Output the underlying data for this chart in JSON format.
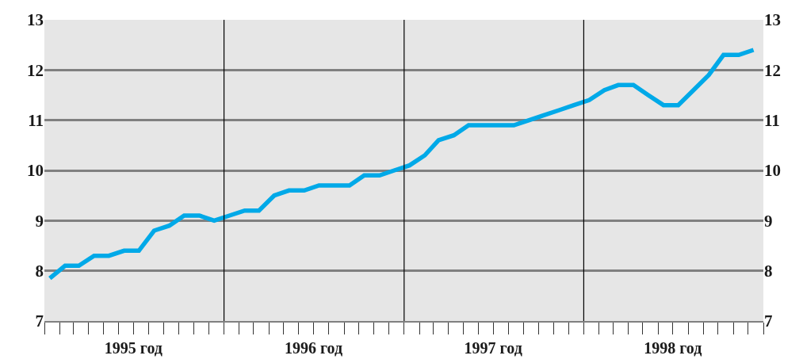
{
  "chart_data": {
    "type": "line",
    "x": [
      "1995-01-12",
      "1995-02-12",
      "1995-03-12",
      "1995-04-12",
      "1995-05-12",
      "1995-06-12",
      "1995-07-12",
      "1995-08-12",
      "1995-09-12",
      "1995-10-12",
      "1995-11-12",
      "1995-12-12",
      "1996-01-12",
      "1996-02-12",
      "1996-03-12",
      "1996-04-12",
      "1996-05-12",
      "1996-06-12",
      "1996-07-12",
      "1996-08-12",
      "1996-09-12",
      "1996-10-12",
      "1996-11-12",
      "1996-12-12",
      "1997-01-12",
      "1997-02-12",
      "1997-03-12",
      "1997-04-12",
      "1997-05-12",
      "1997-06-12",
      "1997-07-12",
      "1997-08-12",
      "1997-09-12",
      "1997-10-12",
      "1997-11-12",
      "1997-12-12",
      "1998-01-12",
      "1998-02-12",
      "1998-03-12",
      "1998-04-12",
      "1998-05-12",
      "1998-06-12",
      "1998-07-12",
      "1998-08-12",
      "1998-09-12",
      "1998-10-12",
      "1998-11-12",
      "1998-12-12"
    ],
    "series": [
      {
        "color": "#00a9e8",
        "values": [
          7.85,
          8.1,
          8.1,
          8.3,
          8.3,
          8.4,
          8.4,
          8.8,
          8.9,
          9.1,
          9.1,
          9.0,
          9.1,
          9.2,
          9.2,
          9.5,
          9.6,
          9.6,
          9.7,
          9.7,
          9.7,
          9.9,
          9.9,
          10.0,
          10.1,
          10.3,
          10.6,
          10.7,
          10.9,
          10.9,
          10.9,
          10.9,
          11.0,
          11.1,
          11.2,
          11.3,
          11.4,
          11.6,
          11.7,
          11.7,
          11.5,
          11.3,
          11.3,
          11.6,
          11.9,
          12.3,
          12.3,
          12.4
        ]
      }
    ],
    "xlim": [
      "1995-01-01",
      "1999-01-01"
    ],
    "xticks": [
      {
        "value": "1995-01",
        "label": null
      },
      {
        "value": "1995-02",
        "label": null
      },
      {
        "value": "1995-03",
        "label": null
      },
      {
        "value": "1995-04",
        "label": null
      },
      {
        "value": "1995-05",
        "label": null
      },
      {
        "value": "1995-06",
        "label": null
      },
      {
        "value": "1995-07",
        "label": "1995 год"
      },
      {
        "value": "1995-08",
        "label": null
      },
      {
        "value": "1995-09",
        "label": null
      },
      {
        "value": "1995-10",
        "label": null
      },
      {
        "value": "1995-11",
        "label": null
      },
      {
        "value": "1995-12",
        "label": null
      },
      {
        "value": "1996-01",
        "label": null
      },
      {
        "value": "1996-02",
        "label": null
      },
      {
        "value": "1996-03",
        "label": null
      },
      {
        "value": "1996-04",
        "label": null
      },
      {
        "value": "1996-05",
        "label": null
      },
      {
        "value": "1996-06",
        "label": null
      },
      {
        "value": "1996-07",
        "label": "1996 год"
      },
      {
        "value": "1996-08",
        "label": null
      },
      {
        "value": "1996-09",
        "label": null
      },
      {
        "value": "1996-10",
        "label": null
      },
      {
        "value": "1996-11",
        "label": null
      },
      {
        "value": "1996-12",
        "label": null
      },
      {
        "value": "1997-01",
        "label": null
      },
      {
        "value": "1997-02",
        "label": null
      },
      {
        "value": "1997-03",
        "label": null
      },
      {
        "value": "1997-04",
        "label": null
      },
      {
        "value": "1997-05",
        "label": null
      },
      {
        "value": "1997-06",
        "label": null
      },
      {
        "value": "1997-07",
        "label": "1997 год"
      },
      {
        "value": "1997-08",
        "label": null
      },
      {
        "value": "1997-09",
        "label": null
      },
      {
        "value": "1997-10",
        "label": null
      },
      {
        "value": "1997-11",
        "label": null
      },
      {
        "value": "1997-12",
        "label": null
      },
      {
        "value": "1998-01",
        "label": null
      },
      {
        "value": "1998-02",
        "label": null
      },
      {
        "value": "1998-03",
        "label": null
      },
      {
        "value": "1998-04",
        "label": null
      },
      {
        "value": "1998-05",
        "label": null
      },
      {
        "value": "1998-06",
        "label": null
      },
      {
        "value": "1998-07",
        "label": "1998 год"
      },
      {
        "value": "1998-08",
        "label": null
      },
      {
        "value": "1998-09",
        "label": null
      },
      {
        "value": "1998-10",
        "label": null
      },
      {
        "value": "1998-11",
        "label": null
      },
      {
        "value": "1998-12",
        "label": null
      },
      {
        "value": "1999-01",
        "label": null
      }
    ],
    "ylim": [
      7,
      13
    ],
    "yticks": [
      7,
      8,
      9,
      10,
      11,
      12,
      13
    ],
    "y2lim": [
      7,
      13
    ],
    "y2ticks": [
      7,
      8,
      9,
      10,
      11,
      12,
      13
    ],
    "ref_lines": [
      {
        "axis": "x",
        "value": "1996-01-01",
        "color": "#000000"
      },
      {
        "axis": "x",
        "value": "1997-01-01",
        "color": "#000000"
      },
      {
        "axis": "x",
        "value": "1998-01-01",
        "color": "#000000"
      }
    ],
    "grid": "y",
    "marker": "none",
    "line_style": "solid"
  }
}
